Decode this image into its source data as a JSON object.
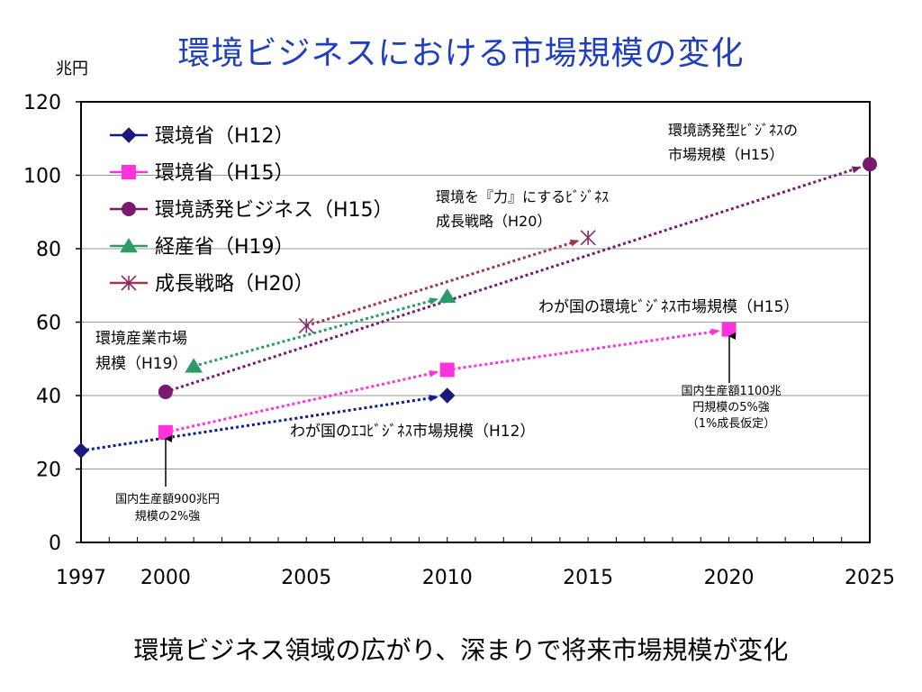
{
  "slide": {
    "title": "環境ビジネスにおける市場規模の変化",
    "footer": "環境ビジネス領域の広がり、深まりで将来市場規模が変化"
  },
  "chart_data": {
    "type": "line",
    "title": "環境ビジネスにおける市場規模の変化",
    "ylabel": "兆円",
    "xlabel": "",
    "xlim": [
      1997,
      2025
    ],
    "ylim": [
      0,
      120
    ],
    "x_ticks": [
      "1997",
      "2000",
      "2005",
      "2010",
      "2015",
      "2020",
      "2025"
    ],
    "y_ticks": [
      "0",
      "20",
      "40",
      "60",
      "80",
      "100",
      "120"
    ],
    "grid": "horizontal",
    "legend_position": "top-left",
    "series": [
      {
        "name": "環境省（H12）",
        "marker": "diamond",
        "color": "#1a1a7a",
        "line_color": "#0b1f8a",
        "points": [
          {
            "x": 1997,
            "y": 25
          },
          {
            "x": 2010,
            "y": 40
          }
        ]
      },
      {
        "name": "環境省（H15）",
        "marker": "square",
        "color": "#ff33dd",
        "line_color": "#ff33dd",
        "points": [
          {
            "x": 2000,
            "y": 30
          },
          {
            "x": 2010,
            "y": 47
          },
          {
            "x": 2020,
            "y": 58
          }
        ]
      },
      {
        "name": "環境誘発ビジネス（H15）",
        "marker": "circle",
        "color": "#7a1a6e",
        "line_color": "#7a1a6e",
        "points": [
          {
            "x": 2000,
            "y": 41
          },
          {
            "x": 2025,
            "y": 103
          }
        ]
      },
      {
        "name": "経産省（H19）",
        "marker": "triangle",
        "color": "#2e9a6a",
        "line_color": "#2e9a6a",
        "points": [
          {
            "x": 2001,
            "y": 48
          },
          {
            "x": 2010,
            "y": 67
          }
        ]
      },
      {
        "name": "成長戦略（H20）",
        "marker": "asterisk",
        "color": "#8a2a6a",
        "line_color": "#9a3a4a",
        "points": [
          {
            "x": 2005,
            "y": 59
          },
          {
            "x": 2015,
            "y": 83
          }
        ]
      }
    ],
    "annotations": {
      "env_induced": {
        "lines": [
          "環境誘発型ﾋﾞｼﾞﾈｽの",
          "市場規模（H15）"
        ]
      },
      "growth": {
        "lines": [
          "環境を『力』にするﾋﾞｼﾞﾈｽ",
          "成長戦略（H20）"
        ]
      },
      "japan_h15": {
        "lines": [
          "わが国の環境ﾋﾞｼﾞﾈｽ市場規模（H15）"
        ]
      },
      "industry": {
        "lines": [
          "環境産業市場",
          "規模（H19）"
        ]
      },
      "eco_h12": {
        "lines": [
          "わが国のｴｺﾋﾞｼﾞﾈｽ市場規模（H12）"
        ]
      },
      "note_2000": {
        "lines": [
          "国内生産額900兆円",
          "規模の2%強"
        ]
      },
      "note_2020": {
        "lines": [
          "国内生産額1100兆",
          "円規模の5%強",
          "（1%成長仮定）"
        ]
      }
    }
  }
}
